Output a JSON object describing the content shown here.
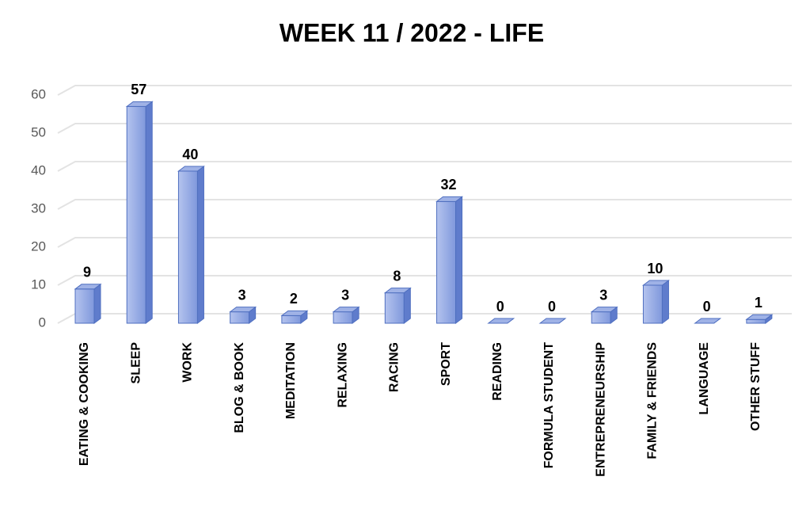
{
  "chart_data": {
    "type": "bar3d",
    "title": "WEEK 11 / 2022 - LIFE",
    "categories": [
      "EATING & COOKING",
      "SLEEP",
      "WORK",
      "BLOG & BOOK",
      "MEDITATION",
      "RELAXING",
      "RACING",
      "SPORT",
      "READING",
      "FORMULA STUDENT",
      "ENTREPRENEURSHIP",
      "FAMILY & FRIENDS",
      "LANGUAGE",
      "OTHER STUFF"
    ],
    "values": [
      9,
      57,
      40,
      3,
      2,
      3,
      8,
      32,
      0,
      0,
      3,
      10,
      0,
      1
    ],
    "color": "#8ea3e0",
    "ylim": [
      0,
      60
    ],
    "yticks": [
      0,
      10,
      20,
      30,
      40,
      50,
      60
    ],
    "grid": true
  }
}
